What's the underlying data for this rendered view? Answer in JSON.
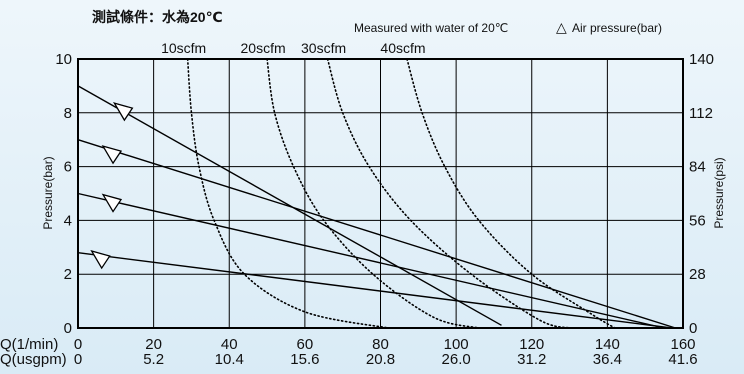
{
  "chart_data": {
    "type": "line",
    "title": "測試條件：水為20℃",
    "subtitle": "Measured with water of 20℃",
    "legend": {
      "symbol": "△",
      "label": "Air  pressure(bar)",
      "placement": "top-right"
    },
    "xlabel_lpm": "Q(1/min)",
    "xlabel_usgpm": "Q(usgpm)",
    "ylabel_left": "Pressure(bar)",
    "ylabel_right": "Pressure(psi)",
    "xlim": [
      0,
      160
    ],
    "ylim": [
      0,
      10
    ],
    "ylim_psi": [
      0,
      140
    ],
    "grid": true,
    "x_ticks_lpm": [
      "0",
      "20",
      "40",
      "60",
      "80",
      "100",
      "120",
      "140",
      "160"
    ],
    "x_ticks_usgpm": [
      "0",
      "5.2",
      "10.4",
      "15.6",
      "20.8",
      "26.0",
      "31.2",
      "36.4",
      "41.6"
    ],
    "y_ticks_bar": [
      "0",
      "2",
      "4",
      "6",
      "8",
      "10"
    ],
    "y_ticks_psi": [
      "0",
      "28",
      "56",
      "84",
      "112",
      "140"
    ],
    "air_pressure_series": [
      {
        "x": [
          0,
          112
        ],
        "y": [
          9,
          0.1
        ],
        "marker_at": [
          12,
          8.1
        ]
      },
      {
        "x": [
          0,
          158
        ],
        "y": [
          7,
          0
        ],
        "marker_at": [
          9,
          6.5
        ]
      },
      {
        "x": [
          0,
          155
        ],
        "y": [
          5,
          0
        ],
        "marker_at": [
          9,
          4.7
        ]
      },
      {
        "x": [
          0,
          157
        ],
        "y": [
          2.8,
          0
        ],
        "marker_at": [
          6,
          2.6
        ]
      }
    ],
    "air_consumption_curves": [
      {
        "name": "10scfm",
        "points": [
          [
            29,
            10
          ],
          [
            30,
            8
          ],
          [
            32,
            6
          ],
          [
            36,
            4
          ],
          [
            44,
            2
          ],
          [
            60,
            0.6
          ],
          [
            82,
            0
          ]
        ]
      },
      {
        "name": "20scfm",
        "points": [
          [
            50,
            10
          ],
          [
            52,
            8
          ],
          [
            57,
            6
          ],
          [
            65,
            4
          ],
          [
            78,
            2
          ],
          [
            94,
            0.4
          ],
          [
            106,
            0
          ]
        ]
      },
      {
        "name": "30scfm",
        "points": [
          [
            66,
            10
          ],
          [
            70,
            8
          ],
          [
            77,
            6
          ],
          [
            88,
            4
          ],
          [
            104,
            2
          ],
          [
            122,
            0.3
          ],
          [
            130,
            0
          ]
        ]
      },
      {
        "name": "40scfm",
        "points": [
          [
            87,
            10
          ],
          [
            91,
            8
          ],
          [
            97,
            6
          ],
          [
            106,
            4
          ],
          [
            120,
            2
          ],
          [
            136,
            0.5
          ],
          [
            142,
            0
          ]
        ]
      }
    ]
  }
}
